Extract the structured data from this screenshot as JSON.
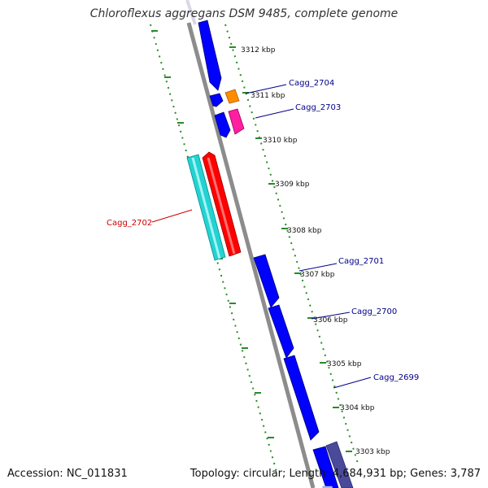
{
  "title": "Chloroflexus aggregans DSM 9485, complete genome",
  "footer": {
    "accession": "Accession: NC_011831",
    "summary": "Topology: circular; Length: 4,684,931 bp; Genes: 3,787"
  },
  "ticks": [
    "3312 kbp",
    "3311 kbp",
    "3310 kbp",
    "3309 kbp",
    "3308 kbp",
    "3307 kbp",
    "3306 kbp",
    "3305 kbp",
    "3304 kbp",
    "3303 kbp"
  ],
  "gene_labels": [
    {
      "name": "Cagg_2704",
      "color": "#00008b"
    },
    {
      "name": "Cagg_2703",
      "color": "#00008b"
    },
    {
      "name": "Cagg_2702",
      "color": "#cc0000"
    },
    {
      "name": "Cagg_2701",
      "color": "#00008b"
    },
    {
      "name": "Cagg_2700",
      "color": "#00008b"
    },
    {
      "name": "Cagg_2699",
      "color": "#00008b"
    }
  ],
  "colors": {
    "backbone": "#8c8c8c",
    "tick": "#2b8a2b",
    "cds_forward": "#0000ff",
    "cds_reverse_red": "#ff0000",
    "cds_cyan": "#22d3d3",
    "orange": "#ff8c00",
    "magenta": "#ff1fa0",
    "lavender": "#c8c8ff",
    "slate": "#4a4a9a"
  }
}
